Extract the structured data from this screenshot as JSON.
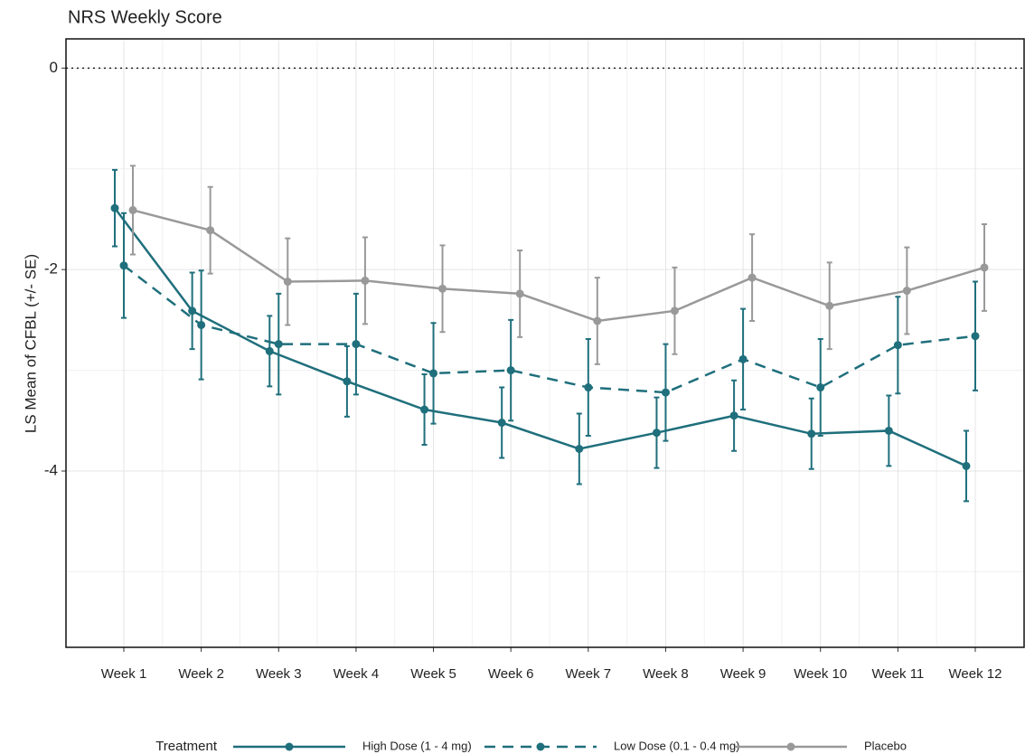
{
  "chart_data": {
    "type": "line",
    "title": "NRS Weekly Score",
    "ylabel": "LS Mean of CFBL (+/- SE)",
    "categories": [
      "Week 1",
      "Week 2",
      "Week 3",
      "Week 4",
      "Week 5",
      "Week 6",
      "Week 7",
      "Week 8",
      "Week 9",
      "Week 10",
      "Week 11",
      "Week 12"
    ],
    "ylim": [
      -5.75,
      0.29
    ],
    "yticks": [
      0,
      -2,
      -4
    ],
    "grid": true,
    "reference_line": 0,
    "legend_title": "Treatment",
    "legend_position": "bottom",
    "series": [
      {
        "name": "High Dose (1 - 4 mg)",
        "color": "#1f6f7c",
        "dash": false,
        "values": [
          -1.39,
          -2.41,
          -2.81,
          -3.11,
          -3.39,
          -3.52,
          -3.78,
          -3.62,
          -3.45,
          -3.63,
          -3.6,
          -3.95
        ],
        "errors": [
          0.38,
          0.38,
          0.35,
          0.35,
          0.35,
          0.35,
          0.35,
          0.35,
          0.35,
          0.35,
          0.35,
          0.35
        ]
      },
      {
        "name": "Low Dose (0.1 - 0.4 mg)",
        "color": "#1f6f7c",
        "dash": true,
        "values": [
          -1.96,
          -2.55,
          -2.74,
          -2.74,
          -3.03,
          -3.0,
          -3.17,
          -3.22,
          -2.89,
          -3.17,
          -2.75,
          -2.66
        ],
        "errors": [
          0.52,
          0.54,
          0.5,
          0.5,
          0.5,
          0.5,
          0.48,
          0.48,
          0.5,
          0.48,
          0.48,
          0.54
        ]
      },
      {
        "name": "Placebo",
        "color": "#999999",
        "dash": false,
        "values": [
          -1.41,
          -1.61,
          -2.12,
          -2.11,
          -2.19,
          -2.24,
          -2.51,
          -2.41,
          -2.08,
          -2.36,
          -2.21,
          -1.98
        ],
        "errors": [
          0.44,
          0.43,
          0.43,
          0.43,
          0.43,
          0.43,
          0.43,
          0.43,
          0.43,
          0.43,
          0.43,
          0.43
        ]
      }
    ]
  }
}
